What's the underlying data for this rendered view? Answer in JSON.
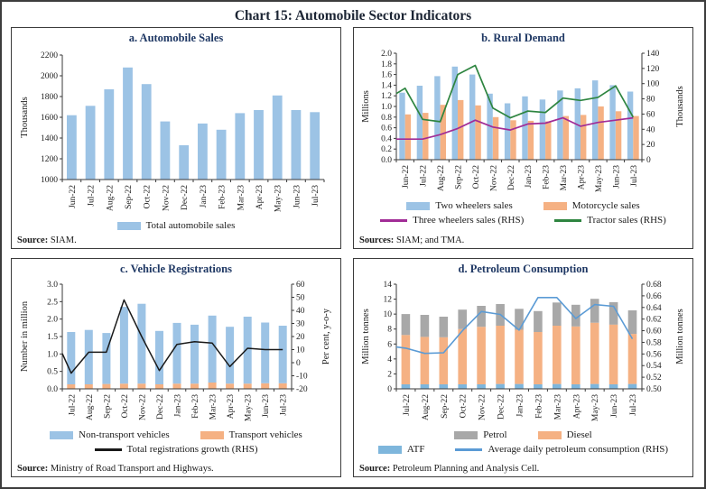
{
  "page": {
    "title": "Chart 15: Automobile Sector Indicators"
  },
  "colors": {
    "bar_blue": "#9cc3e5",
    "bar_orange": "#f5b183",
    "bar_gray": "#a8a8a8",
    "line_purple": "#a12c96",
    "line_green": "#2e8540",
    "line_black": "#1a1a1a",
    "line_blue": "#5b9bd5"
  },
  "chart_data": [
    {
      "id": "a",
      "type": "bar",
      "title": "a. Automobile Sales",
      "categories": [
        "Jun-22",
        "Jul-22",
        "Aug-22",
        "Sep-22",
        "Oct-22",
        "Nov-22",
        "Dec-22",
        "Jan-23",
        "Feb-23",
        "Mar-23",
        "Apr-23",
        "May-23",
        "Jun-23",
        "Jul-23"
      ],
      "left_axis": {
        "label": "Thousands",
        "min": 1000,
        "max": 2200,
        "step": 200,
        "decimals": 0
      },
      "bar_mode": "single",
      "series": [
        {
          "name": "Total automobile sales",
          "color": "#9cc3e5",
          "values": [
            1620,
            1710,
            1870,
            2080,
            1920,
            1560,
            1330,
            1540,
            1480,
            1640,
            1670,
            1810,
            1670,
            1650
          ]
        }
      ],
      "lines": [],
      "legend": [
        [
          {
            "label": "Total automobile sales",
            "swatch": "patch",
            "color": "#9cc3e5"
          }
        ]
      ],
      "source_label": "Source:",
      "source_text": " SIAM."
    },
    {
      "id": "b",
      "type": "grouped-bar+lines",
      "title": "b. Rural Demand",
      "categories": [
        "Jun-22",
        "Jul-22",
        "Aug-22",
        "Sep-22",
        "Oct-22",
        "Nov-22",
        "Dec-22",
        "Jan-23",
        "Feb-23",
        "Mar-23",
        "Apr-23",
        "May-23",
        "Jun-23",
        "Jul-23"
      ],
      "left_axis": {
        "label": "Millions",
        "min": 0.0,
        "max": 2.0,
        "step": 0.2,
        "decimals": 1
      },
      "right_axis": {
        "label": "Thousands",
        "min": 0,
        "max": 140,
        "step": 20,
        "decimals": 0
      },
      "bar_mode": "grouped",
      "series": [
        {
          "name": "Two wheelers sales",
          "color": "#9cc3e5",
          "values": [
            1.26,
            1.39,
            1.57,
            1.75,
            1.6,
            1.24,
            1.06,
            1.19,
            1.13,
            1.3,
            1.34,
            1.49,
            1.4,
            1.28
          ]
        },
        {
          "name": "Motorcycle sales",
          "color": "#f5b183",
          "values": [
            0.85,
            0.88,
            1.03,
            1.12,
            1.02,
            0.8,
            0.74,
            0.73,
            0.72,
            0.82,
            0.84,
            1.0,
            0.91,
            0.82
          ]
        }
      ],
      "lines": [
        {
          "name": "Three wheelers sales (RHS)",
          "color": "#a12c96",
          "width": 1.7,
          "edge": 27,
          "values": [
            27,
            27,
            33,
            41,
            52,
            43,
            39,
            47,
            48,
            55,
            44,
            49,
            52,
            55
          ]
        },
        {
          "name": "Tractor sales (RHS)",
          "color": "#2e8540",
          "width": 1.7,
          "edge": 87,
          "values": [
            94,
            53,
            50,
            112,
            124,
            68,
            55,
            64,
            62,
            81,
            78,
            82,
            97,
            56
          ]
        }
      ],
      "legend": [
        [
          {
            "label": "Two wheelers sales",
            "swatch": "patch",
            "color": "#9cc3e5"
          },
          {
            "label": "Motorcycle sales",
            "swatch": "patch",
            "color": "#f5b183"
          }
        ],
        [
          {
            "label": "Three wheelers sales (RHS)",
            "swatch": "line",
            "color": "#a12c96"
          },
          {
            "label": "Tractor sales (RHS)",
            "swatch": "line",
            "color": "#2e8540"
          }
        ]
      ],
      "source_label": "Sources:",
      "source_text": " SIAM; and TMA."
    },
    {
      "id": "c",
      "type": "stacked-bar+line",
      "title": "c. Vehicle Registrations",
      "categories": [
        "Jul-22",
        "Aug-22",
        "Sep-22",
        "Oct-22",
        "Nov-22",
        "Dec-22",
        "Jan-23",
        "Feb-23",
        "Mar-23",
        "Apr-23",
        "May-23",
        "Jun-23",
        "Jul-23"
      ],
      "left_axis": {
        "label": "Number in million",
        "min": 0.0,
        "max": 3.0,
        "step": 0.5,
        "decimals": 1
      },
      "right_axis": {
        "label": "Per cent, y-o-y",
        "min": -20,
        "max": 60,
        "step": 10,
        "decimals": 0
      },
      "bar_mode": "stacked",
      "series": [
        {
          "name": "Transport vehicles",
          "color": "#f5b183",
          "values": [
            0.13,
            0.13,
            0.14,
            0.15,
            0.15,
            0.13,
            0.15,
            0.15,
            0.18,
            0.15,
            0.15,
            0.16,
            0.16
          ]
        },
        {
          "name": "Non-transport vehicles",
          "color": "#9cc3e5",
          "values": [
            1.5,
            1.56,
            1.46,
            2.2,
            2.29,
            1.53,
            1.74,
            1.69,
            1.92,
            1.63,
            1.92,
            1.74,
            1.65
          ]
        }
      ],
      "lines": [
        {
          "name": "Total registrations growth (RHS)",
          "color": "#1a1a1a",
          "width": 1.5,
          "edge": 7,
          "values": [
            -8,
            8,
            8,
            48,
            20,
            -6,
            14,
            16,
            15,
            -3,
            11,
            10,
            10
          ]
        }
      ],
      "legend": [
        [
          {
            "label": "Non-transport vehicles",
            "swatch": "patch",
            "color": "#9cc3e5"
          },
          {
            "label": "Transport vehicles",
            "swatch": "patch",
            "color": "#f5b183"
          }
        ],
        [
          {
            "label": "Total registrations growth (RHS)",
            "swatch": "line",
            "color": "#1a1a1a"
          }
        ]
      ],
      "source_label": "Source:",
      "source_text": " Ministry of Road Transport and Highways."
    },
    {
      "id": "d",
      "type": "stacked-bar+line",
      "title": "d. Petroleum Consumption",
      "categories": [
        "Jul-22",
        "Aug-22",
        "Sep-22",
        "Oct-22",
        "Nov-22",
        "Dec-22",
        "Jan-23",
        "Feb-23",
        "Mar-23",
        "Apr-23",
        "May-23",
        "Jun-23",
        "Jul-23"
      ],
      "left_axis": {
        "label": "Million tonnes",
        "min": 0,
        "max": 14,
        "step": 2,
        "decimals": 0
      },
      "right_axis": {
        "label": "Million tonnes",
        "min": 0.5,
        "max": 0.68,
        "step": 0.02,
        "decimals": 2
      },
      "bar_mode": "stacked",
      "series": [
        {
          "name": "ATF",
          "color": "#7eb6dc",
          "values": [
            0.6,
            0.6,
            0.6,
            0.6,
            0.6,
            0.65,
            0.65,
            0.6,
            0.65,
            0.6,
            0.65,
            0.6,
            0.65
          ]
        },
        {
          "name": "Diesel",
          "color": "#f5b183",
          "values": [
            6.6,
            6.35,
            6.3,
            7.4,
            7.7,
            7.8,
            7.25,
            7.0,
            7.8,
            7.75,
            8.2,
            8.0,
            6.7
          ]
        },
        {
          "name": "Petrol",
          "color": "#a8a8a8",
          "values": [
            2.8,
            2.95,
            2.75,
            2.6,
            2.8,
            2.9,
            2.8,
            2.8,
            3.1,
            2.9,
            3.2,
            3.0,
            3.15
          ]
        }
      ],
      "lines": [
        {
          "name": "Average daily petroleum consumption (RHS)",
          "color": "#5b9bd5",
          "width": 1.6,
          "edge": 0.572,
          "values": [
            0.57,
            0.561,
            0.562,
            0.6,
            0.633,
            0.628,
            0.601,
            0.657,
            0.657,
            0.621,
            0.645,
            0.642,
            0.586
          ]
        }
      ],
      "legend": [
        [
          {
            "label": "Petrol",
            "swatch": "patch",
            "color": "#a8a8a8"
          },
          {
            "label": "Diesel",
            "swatch": "patch",
            "color": "#f5b183"
          }
        ],
        [
          {
            "label": "ATF",
            "swatch": "patch",
            "color": "#7eb6dc"
          },
          {
            "label": "Average daily petroleum consumption (RHS)",
            "swatch": "line",
            "color": "#5b9bd5"
          }
        ]
      ],
      "source_label": "Source:",
      "source_text": " Petroleum Planning and Analysis Cell."
    }
  ]
}
